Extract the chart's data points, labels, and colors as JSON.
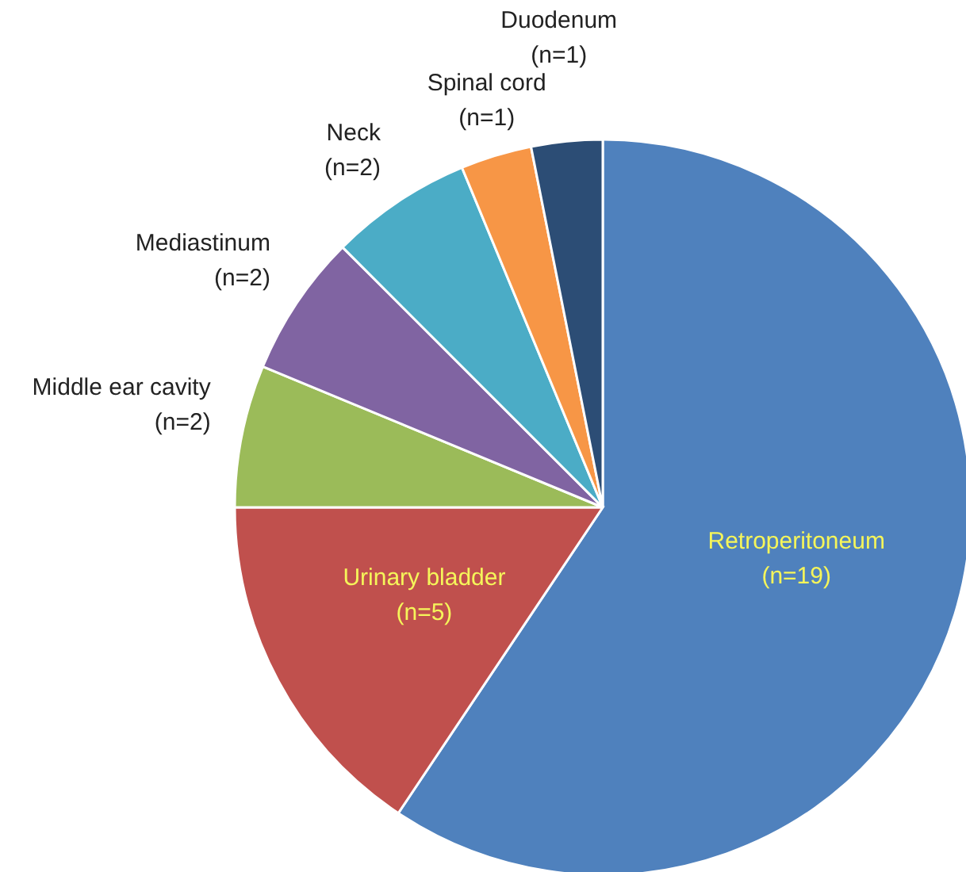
{
  "chart_data": {
    "type": "pie",
    "categories": [
      "Retroperitoneum",
      "Urinary bladder",
      "Middle ear cavity",
      "Mediastinum",
      "Neck",
      "Spinal cord",
      "Duodenum"
    ],
    "values": [
      19,
      5,
      2,
      2,
      2,
      1,
      1
    ],
    "value_labels": [
      "(n=19)",
      "(n=5)",
      "(n=2)",
      "(n=2)",
      "(n=2)",
      "(n=1)",
      "(n=1)"
    ],
    "colors": [
      "#4f81bd",
      "#c0504d",
      "#9bbb59",
      "#8064a2",
      "#4bacc6",
      "#f79646",
      "#2c4d75"
    ]
  }
}
